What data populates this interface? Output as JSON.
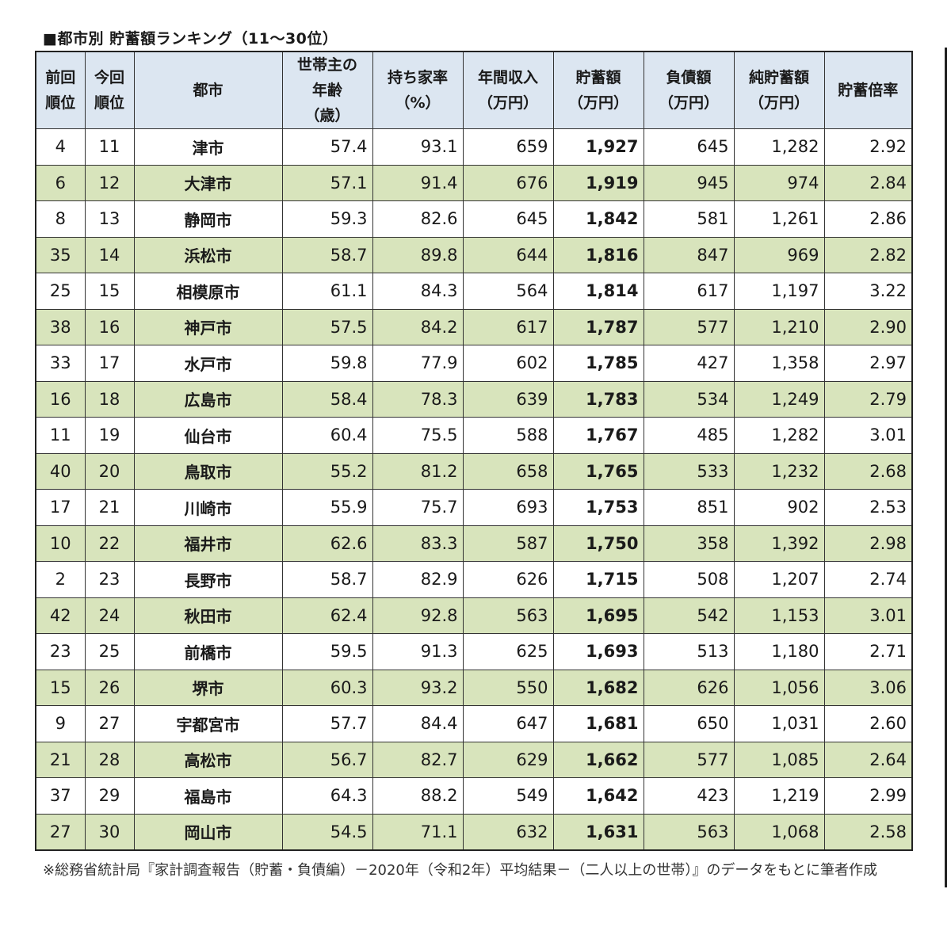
{
  "title": "■都市別 貯蓄額ランキング（11〜30位）",
  "chart_data": {
    "type": "table",
    "title": "■都市別 貯蓄額ランキング（11〜30位）",
    "columns": [
      "前回\n順位",
      "今回\n順位",
      "都市",
      "世帯主の\n年齢\n（歳）",
      "持ち家率\n（%）",
      "年間収入\n（万円）",
      "貯蓄額\n（万円）",
      "負債額\n（万円）",
      "純貯蓄額\n（万円）",
      "貯蓄倍率"
    ],
    "rows": [
      [
        "4",
        "11",
        "津市",
        "57.4",
        "93.1",
        "659",
        "1,927",
        "645",
        "1,282",
        "2.92"
      ],
      [
        "6",
        "12",
        "大津市",
        "57.1",
        "91.4",
        "676",
        "1,919",
        "945",
        "974",
        "2.84"
      ],
      [
        "8",
        "13",
        "静岡市",
        "59.3",
        "82.6",
        "645",
        "1,842",
        "581",
        "1,261",
        "2.86"
      ],
      [
        "35",
        "14",
        "浜松市",
        "58.7",
        "89.8",
        "644",
        "1,816",
        "847",
        "969",
        "2.82"
      ],
      [
        "25",
        "15",
        "相模原市",
        "61.1",
        "84.3",
        "564",
        "1,814",
        "617",
        "1,197",
        "3.22"
      ],
      [
        "38",
        "16",
        "神戸市",
        "57.5",
        "84.2",
        "617",
        "1,787",
        "577",
        "1,210",
        "2.90"
      ],
      [
        "33",
        "17",
        "水戸市",
        "59.8",
        "77.9",
        "602",
        "1,785",
        "427",
        "1,358",
        "2.97"
      ],
      [
        "16",
        "18",
        "広島市",
        "58.4",
        "78.3",
        "639",
        "1,783",
        "534",
        "1,249",
        "2.79"
      ],
      [
        "11",
        "19",
        "仙台市",
        "60.4",
        "75.5",
        "588",
        "1,767",
        "485",
        "1,282",
        "3.01"
      ],
      [
        "40",
        "20",
        "鳥取市",
        "55.2",
        "81.2",
        "658",
        "1,765",
        "533",
        "1,232",
        "2.68"
      ],
      [
        "17",
        "21",
        "川崎市",
        "55.9",
        "75.7",
        "693",
        "1,753",
        "851",
        "902",
        "2.53"
      ],
      [
        "10",
        "22",
        "福井市",
        "62.6",
        "83.3",
        "587",
        "1,750",
        "358",
        "1,392",
        "2.98"
      ],
      [
        "2",
        "23",
        "長野市",
        "58.7",
        "82.9",
        "626",
        "1,715",
        "508",
        "1,207",
        "2.74"
      ],
      [
        "42",
        "24",
        "秋田市",
        "62.4",
        "92.8",
        "563",
        "1,695",
        "542",
        "1,153",
        "3.01"
      ],
      [
        "23",
        "25",
        "前橋市",
        "59.5",
        "91.3",
        "625",
        "1,693",
        "513",
        "1,180",
        "2.71"
      ],
      [
        "15",
        "26",
        "堺市",
        "60.3",
        "93.2",
        "550",
        "1,682",
        "626",
        "1,056",
        "3.06"
      ],
      [
        "9",
        "27",
        "宇都宮市",
        "57.7",
        "84.4",
        "647",
        "1,681",
        "650",
        "1,031",
        "2.60"
      ],
      [
        "21",
        "28",
        "高松市",
        "56.7",
        "82.7",
        "629",
        "1,662",
        "577",
        "1,085",
        "2.64"
      ],
      [
        "37",
        "29",
        "福島市",
        "64.3",
        "88.2",
        "549",
        "1,642",
        "423",
        "1,219",
        "2.99"
      ],
      [
        "27",
        "30",
        "岡山市",
        "54.5",
        "71.1",
        "632",
        "1,631",
        "563",
        "1,068",
        "2.58"
      ]
    ],
    "row_colors": [
      "#ffffff",
      "#d8e4bc"
    ],
    "header_color": "#dce6f1"
  },
  "note": "※総務省統計局『家計調査報告（貯蓄・負債編）－2020年（令和2年）平均結果－（二人以上の世帯）』のデータをもとに筆者作成"
}
